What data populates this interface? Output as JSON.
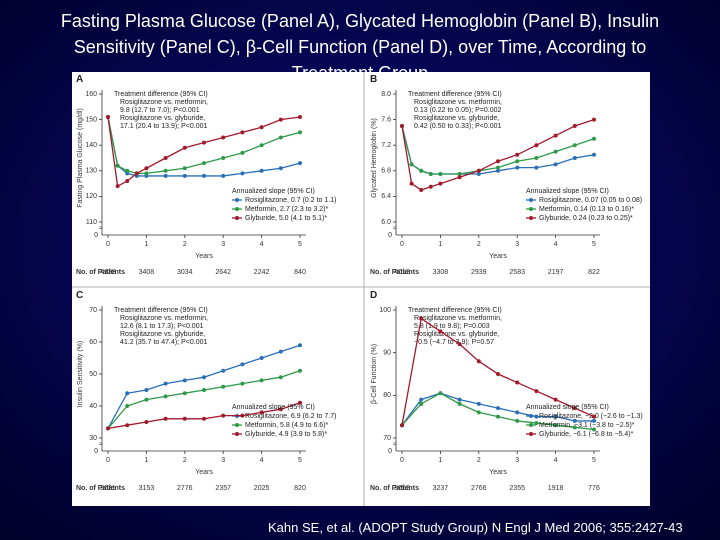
{
  "slide": {
    "title_lines": [
      "Fasting Plasma Glucose (Panel A), Glycated Hemoglobin (Panel B), Insulin",
      "Sensitivity (Panel C), β-Cell Function (Panel D), over Time, According to",
      "Treatment Group"
    ],
    "citation": "Kahn SE, et al. (ADOPT Study Group) N Engl J Med 2006; 355:2427-43"
  },
  "chart_data": [
    {
      "type": "line",
      "label": "A",
      "ylabel": "Fasting Plasma Glucose (mg/dl)",
      "xlabel": "Years",
      "x": [
        0,
        0.25,
        0.5,
        0.75,
        1,
        1.5,
        2,
        2.5,
        3,
        3.5,
        4,
        4.5,
        5
      ],
      "xlim": [
        0,
        5
      ],
      "xticks": [
        0,
        1,
        2,
        3,
        4,
        5
      ],
      "ylim": [
        110,
        160
      ],
      "yticks": [
        110,
        120,
        130,
        140,
        150,
        160
      ],
      "axis_break_label": "0",
      "annotation": [
        "Treatment difference (95% CI)",
        "Rosiglitazone vs. metformin,",
        "9.8 (12.7 to 7.0); P<0.001",
        "Rosiglitazone vs. glyburide,",
        "17.1 (20.4 to 13.9); P<0.001"
      ],
      "legend_title": "Annualized slope (95% CI)",
      "series": [
        {
          "name": "Rosiglitazone, 0.7 (0.2 to 1.1)",
          "color": "#2a6fb8",
          "values": [
            151,
            132,
            129,
            128,
            128,
            128,
            128,
            128,
            128,
            129,
            130,
            131,
            133
          ]
        },
        {
          "name": "Metformin, 2.7 (2.3 to 3.2)*",
          "color": "#2e9a48",
          "values": [
            151,
            132,
            130,
            129,
            129,
            130,
            131,
            133,
            135,
            137,
            140,
            143,
            145
          ]
        },
        {
          "name": "Glyburide, 5.0 (4.1 to 5.1)*",
          "color": "#a3192c",
          "values": [
            151,
            124,
            126,
            129,
            131,
            135,
            139,
            141,
            143,
            145,
            147,
            150,
            151
          ]
        }
      ],
      "patients": {
        "label": "No. of Patients",
        "values": [
          4138,
          3408,
          3034,
          2642,
          2242,
          840
        ]
      }
    },
    {
      "type": "line",
      "label": "B",
      "ylabel": "Glycated Hemoglobin (%)",
      "xlabel": "Years",
      "x": [
        0,
        0.25,
        0.5,
        0.75,
        1,
        1.5,
        2,
        2.5,
        3,
        3.5,
        4,
        4.5,
        5
      ],
      "xlim": [
        0,
        5
      ],
      "xticks": [
        0,
        1,
        2,
        3,
        4,
        5
      ],
      "ylim": [
        6,
        8
      ],
      "yticks": [
        {
          "value": 6,
          "label": "6.0"
        },
        6.4,
        6.8,
        7.2,
        7.6,
        {
          "value": 8,
          "label": "8.0"
        }
      ],
      "axis_break_label": "0",
      "annotation": [
        "Treatment difference (95% CI)",
        "Rosiglitazone vs. metformin,",
        "0.13 (0.22 to 0.05); P=0.002",
        "Rosiglitazone vs. glyburide,",
        "0.42 (0.50 to 0.33); P<0.001"
      ],
      "legend_title": "Annualized slope (95% CI)",
      "series": [
        {
          "name": "Rosiglitazone, 0.07 (0.05 to 0.08)",
          "color": "#2a6fb8",
          "values": [
            7.5,
            6.9,
            6.8,
            6.75,
            6.75,
            6.75,
            6.75,
            6.8,
            6.85,
            6.85,
            6.9,
            7.0,
            7.05
          ]
        },
        {
          "name": "Metformin, 0.14 (0.13 to 0.16)*",
          "color": "#2e9a48",
          "values": [
            7.5,
            6.9,
            6.8,
            6.75,
            6.75,
            6.75,
            6.8,
            6.85,
            6.95,
            7.0,
            7.1,
            7.2,
            7.3
          ]
        },
        {
          "name": "Glyburide, 0.24 (0.23 to 0.25)*",
          "color": "#a3192c",
          "values": [
            7.5,
            6.6,
            6.5,
            6.55,
            6.6,
            6.7,
            6.8,
            6.95,
            7.05,
            7.2,
            7.35,
            7.5,
            7.6
          ]
        }
      ],
      "patients": {
        "label": "No. of Patients",
        "values": [
          4012,
          3308,
          2939,
          2583,
          2197,
          822
        ]
      }
    },
    {
      "type": "line",
      "label": "C",
      "ylabel": "Insulin Sensitivity (%)",
      "xlabel": "Years",
      "x": [
        0,
        0.5,
        1,
        1.5,
        2,
        2.5,
        3,
        3.5,
        4,
        4.5,
        5
      ],
      "xlim": [
        0,
        5
      ],
      "xticks": [
        0,
        1,
        2,
        3,
        4,
        5
      ],
      "ylim": [
        30,
        70
      ],
      "yticks": [
        30,
        40,
        50,
        60,
        70
      ],
      "axis_break_label": "0",
      "annotation": [
        "Treatment difference (95% CI)",
        "Rosiglitazone vs. metformin,",
        "12.6 (8.1 to 17.3); P<0.001",
        "Rosiglitazone vs. glyburide,",
        "41.2 (35.7 to 47.4); P<0.001"
      ],
      "legend_title": "Annualized slope (95% CI)",
      "series": [
        {
          "name": "Rosiglitazone, 6.9 (6.2 to 7.7)",
          "color": "#2a6fb8",
          "values": [
            33,
            44,
            45,
            47,
            48,
            49,
            51,
            53,
            55,
            57,
            59
          ]
        },
        {
          "name": "Metformin, 5.8 (4.9 to 6.6)*",
          "color": "#2e9a48",
          "values": [
            33,
            40,
            42,
            43,
            44,
            45,
            46,
            47,
            48,
            49,
            51
          ]
        },
        {
          "name": "Glyburide, 4.9 (3.9 to 5.8)*",
          "color": "#a3192c",
          "values": [
            33,
            34,
            35,
            36,
            36,
            36,
            37,
            37,
            38,
            39,
            41
          ]
        }
      ],
      "patients": {
        "label": "No. of Patients",
        "values": [
          3631,
          3153,
          2776,
          2357,
          2025,
          820
        ]
      }
    },
    {
      "type": "line",
      "label": "D",
      "ylabel": "β-Cell Function (%)",
      "xlabel": "Years",
      "x": [
        0,
        0.5,
        1,
        1.5,
        2,
        2.5,
        3,
        3.5,
        4,
        4.5,
        5
      ],
      "xlim": [
        0,
        5
      ],
      "xticks": [
        0,
        1,
        2,
        3,
        4,
        5
      ],
      "ylim": [
        70,
        100
      ],
      "yticks": [
        70,
        80,
        90,
        100
      ],
      "axis_break_label": "0",
      "annotation": [
        "Treatment difference (95% CI)",
        "Rosiglitazone vs. metformin,",
        "5.8 (1.9 to 9.8); P=0.003",
        "Rosiglitazone vs. glyburide,",
        "−0.5 (−4.7 to 3.9); P=0.57"
      ],
      "legend_title": "Annualized slope (95% CI)",
      "series": [
        {
          "name": "Rosiglitazone, −2.0 (−2.6 to −1.3)",
          "color": "#2a6fb8",
          "values": [
            73,
            79,
            80.5,
            79,
            78,
            77,
            76,
            75,
            75,
            74,
            74
          ]
        },
        {
          "name": "Metformin, −3.1 (−3.8 to −2.5)*",
          "color": "#2e9a48",
          "values": [
            73,
            78,
            80.5,
            78,
            76,
            75,
            74,
            73.5,
            73,
            72.5,
            72
          ]
        },
        {
          "name": "Glyburide, −6.1 (−6.8 to −5.4)*",
          "color": "#a3192c",
          "values": [
            73,
            98,
            95,
            92,
            88,
            85,
            83,
            81,
            79,
            77,
            75
          ]
        }
      ],
      "patients": {
        "label": "No. of Patients",
        "values": [
          3652,
          3237,
          2766,
          2355,
          1918,
          776
        ]
      }
    }
  ]
}
